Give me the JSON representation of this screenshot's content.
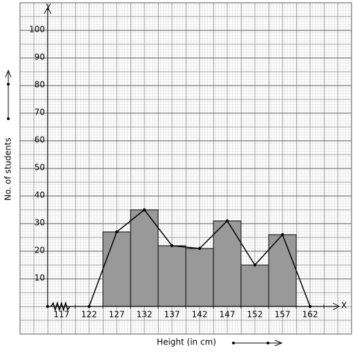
{
  "chart_data": {
    "type": "histogram",
    "x_label": "Height (in cm)",
    "y_label": "No. of students",
    "x_axis_name": "X",
    "y_axis_name": "Y",
    "bins": [
      122,
      127,
      132,
      137,
      142,
      147,
      152,
      157
    ],
    "counts": [
      27,
      35,
      22,
      21,
      31,
      15,
      26
    ],
    "bar_color": "#999999",
    "polygon": {
      "x": [
        119.5,
        124.5,
        129.5,
        134.5,
        139.5,
        144.5,
        149.5,
        154.5,
        159.5
      ],
      "values": [
        0,
        27,
        35,
        22,
        21,
        31,
        15,
        26,
        0
      ],
      "color": "#000000"
    },
    "xlim": [
      112,
      167
    ],
    "ylim": [
      0,
      110
    ],
    "xticks": [
      117,
      122,
      127,
      132,
      137,
      142,
      147,
      152,
      157,
      162
    ],
    "yticks": [
      10,
      20,
      30,
      40,
      50,
      60,
      70,
      80,
      90,
      100
    ],
    "grid": true
  }
}
